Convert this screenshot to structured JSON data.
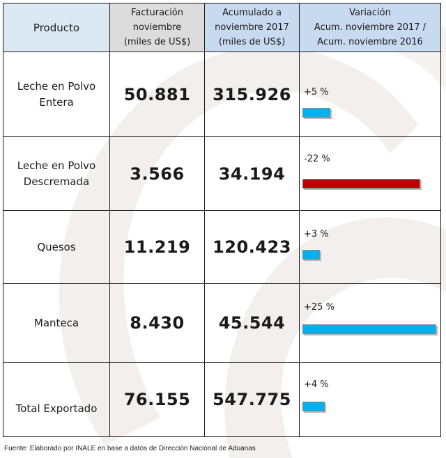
{
  "headers": {
    "producto": "Producto",
    "facturacion": [
      "Facturación",
      "noviembre",
      "(miles de US$)"
    ],
    "acumulado": [
      "Acumulado a",
      "noviembre 2017",
      "(miles de US$)"
    ],
    "variacion": [
      "Variación",
      "Acum. noviembre 2017 /",
      "Acum. noviembre 2016"
    ]
  },
  "rows": [
    {
      "producto": [
        "Leche en Polvo",
        "Entera"
      ],
      "facturacion": "50.881",
      "acumulado": "315.926",
      "variacion_label": "+5 %",
      "variacion_value": 5
    },
    {
      "producto": [
        "Leche en Polvo",
        "Descremada"
      ],
      "facturacion": "3.566",
      "acumulado": "34.194",
      "variacion_label": "-22 %",
      "variacion_value": -22
    },
    {
      "producto": [
        "Quesos"
      ],
      "facturacion": "11.219",
      "acumulado": "120.423",
      "variacion_label": "+3 %",
      "variacion_value": 3
    },
    {
      "producto": [
        "Manteca"
      ],
      "facturacion": "8.430",
      "acumulado": "45.544",
      "variacion_label": "+25 %",
      "variacion_value": 25
    },
    {
      "producto": [
        "Total Exportado"
      ],
      "facturacion": "76.155",
      "acumulado": "547.775",
      "variacion_label": "+4 %",
      "variacion_value": 4
    }
  ],
  "colors": {
    "positive": "#00b0ef",
    "negative": "#c00000"
  },
  "source": "Fuente: Elaborado por INALE en base a datos de Dirección Nacional de Aduanas"
}
